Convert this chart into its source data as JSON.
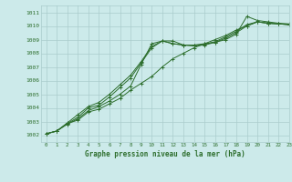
{
  "bg_color": "#cceaea",
  "grid_color": "#aacccc",
  "line_color": "#2d6e2d",
  "title": "Graphe pression niveau de la mer (hPa)",
  "xlim": [
    -0.5,
    23
  ],
  "ylim": [
    1001.5,
    1011.5
  ],
  "xticks": [
    0,
    1,
    2,
    3,
    4,
    5,
    6,
    7,
    8,
    9,
    10,
    11,
    12,
    13,
    14,
    15,
    16,
    17,
    18,
    19,
    20,
    21,
    22,
    23
  ],
  "yticks": [
    1002,
    1003,
    1004,
    1005,
    1006,
    1007,
    1008,
    1009,
    1010,
    1011
  ],
  "series": [
    [
      1002.1,
      1002.3,
      1002.8,
      1003.2,
      1003.8,
      1004.1,
      1004.5,
      1005.0,
      1005.6,
      1007.2,
      1008.7,
      1008.9,
      1008.9,
      1008.6,
      1008.6,
      1008.7,
      1008.8,
      1009.0,
      1009.4,
      1010.7,
      1010.4,
      1010.3,
      1010.2,
      1010.15
    ],
    [
      1002.1,
      1002.3,
      1002.85,
      1003.1,
      1003.7,
      1003.9,
      1004.3,
      1004.7,
      1005.3,
      1005.8,
      1006.3,
      1007.0,
      1007.6,
      1008.0,
      1008.4,
      1008.7,
      1009.0,
      1009.3,
      1009.7,
      1010.0,
      1010.3,
      1010.2,
      1010.15,
      1010.1
    ],
    [
      1002.1,
      1002.3,
      1002.85,
      1003.3,
      1004.0,
      1004.2,
      1004.8,
      1005.5,
      1006.2,
      1007.3,
      1008.4,
      1008.9,
      1008.7,
      1008.6,
      1008.55,
      1008.6,
      1008.8,
      1009.1,
      1009.5,
      1010.0,
      1010.3,
      1010.2,
      1010.15,
      1010.1
    ],
    [
      1002.1,
      1002.3,
      1002.9,
      1003.5,
      1004.1,
      1004.4,
      1005.0,
      1005.7,
      1006.4,
      1007.4,
      1008.5,
      1008.9,
      1008.7,
      1008.6,
      1008.55,
      1008.65,
      1008.85,
      1009.2,
      1009.6,
      1010.1,
      1010.3,
      1010.2,
      1010.15,
      1010.1
    ]
  ]
}
